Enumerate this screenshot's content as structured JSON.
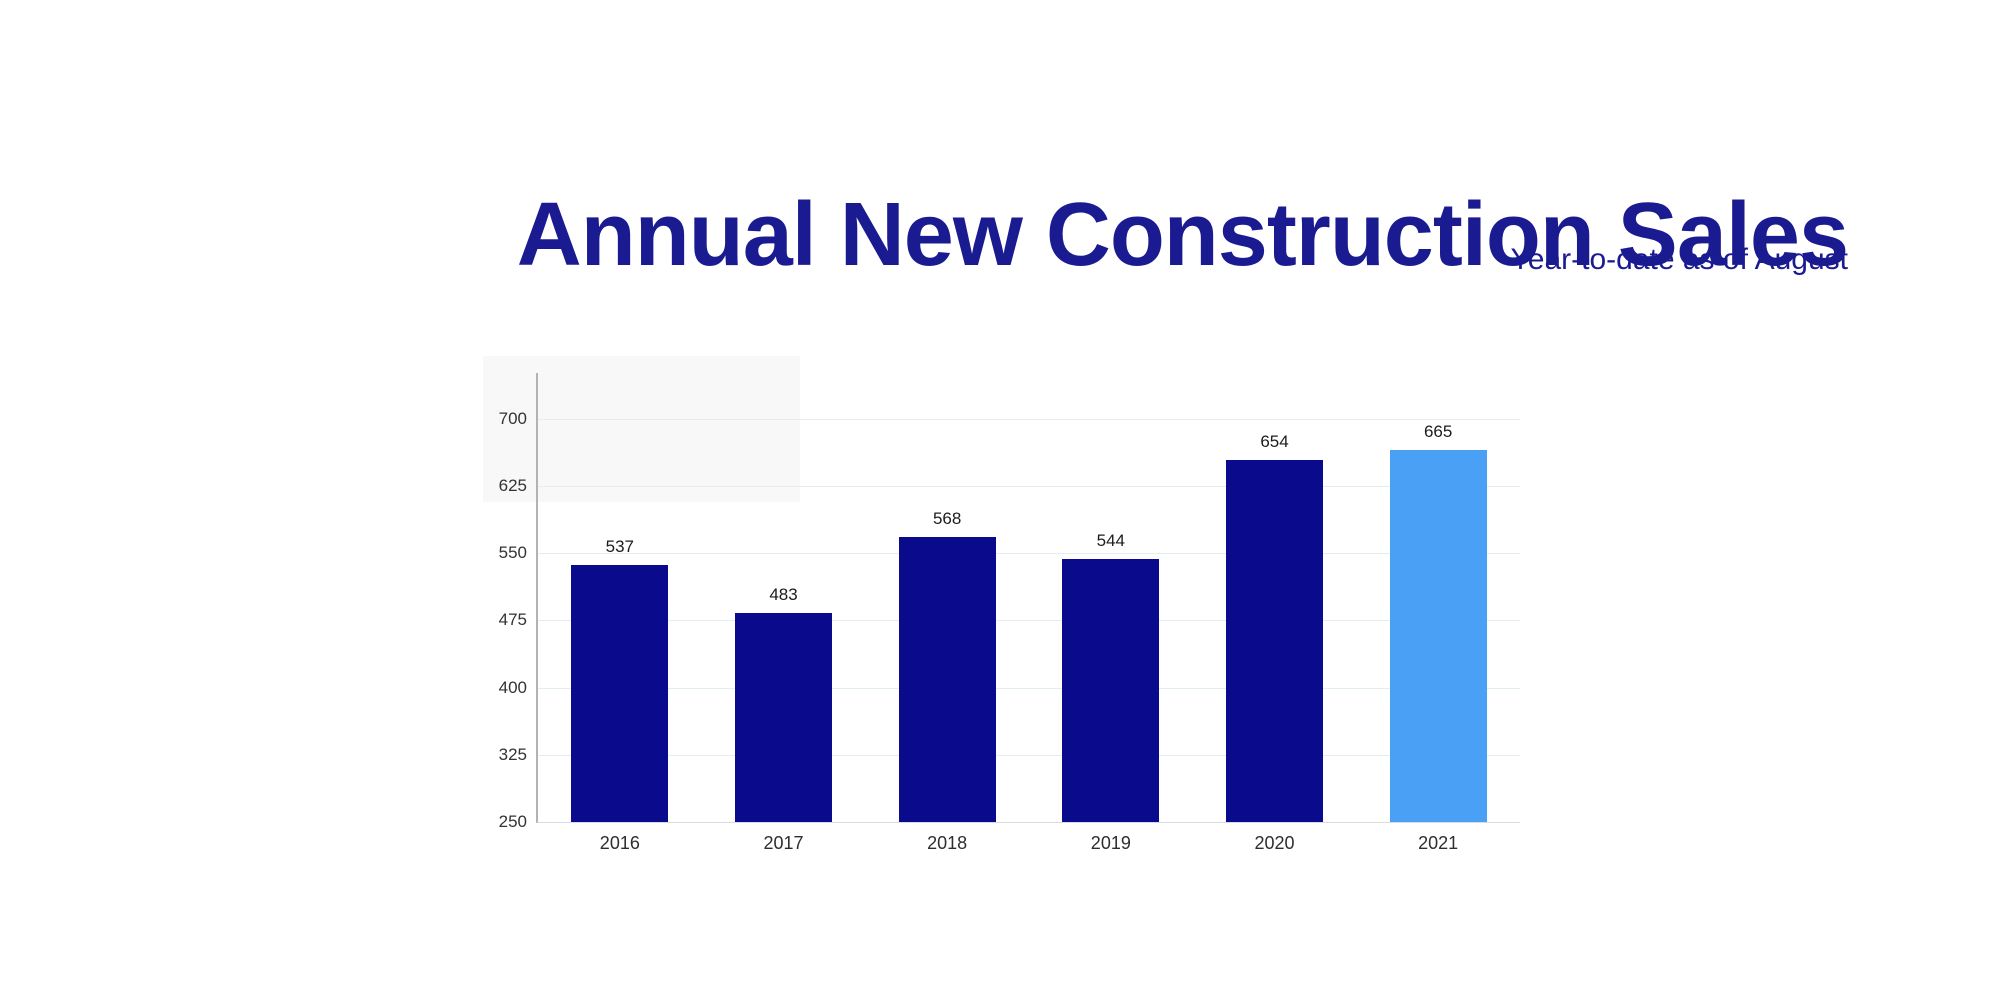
{
  "header": {
    "title": "Annual New Construction Sales",
    "subtitle": "Year-to-date as of August",
    "text_color": "#1b1b91"
  },
  "chart_data": {
    "type": "bar",
    "title": "Annual New Construction Sales",
    "subtitle": "Year-to-date as of August",
    "categories": [
      "2016",
      "2017",
      "2018",
      "2019",
      "2020",
      "2021"
    ],
    "values": [
      537,
      483,
      568,
      544,
      654,
      665
    ],
    "bar_colors": [
      "#0a0a8c",
      "#0a0a8c",
      "#0a0a8c",
      "#0a0a8c",
      "#0a0a8c",
      "#4aa0f5"
    ],
    "highlight_index": 5,
    "y_ticks": [
      250,
      325,
      400,
      475,
      550,
      625,
      700
    ],
    "ylim": [
      250,
      751
    ],
    "xlabel": "",
    "ylabel": "",
    "grid": true,
    "legend_position": "none",
    "colors": {
      "bar_default": "#0a0a8c",
      "bar_highlight": "#4aa0f5",
      "gridline": "#e3edf4",
      "baseline": "#d6dce1",
      "y_axis_line": "#b3b3b3",
      "tick_text": "#333333",
      "value_text": "#1c1c1c",
      "category_text": "#2e2e2e"
    }
  }
}
